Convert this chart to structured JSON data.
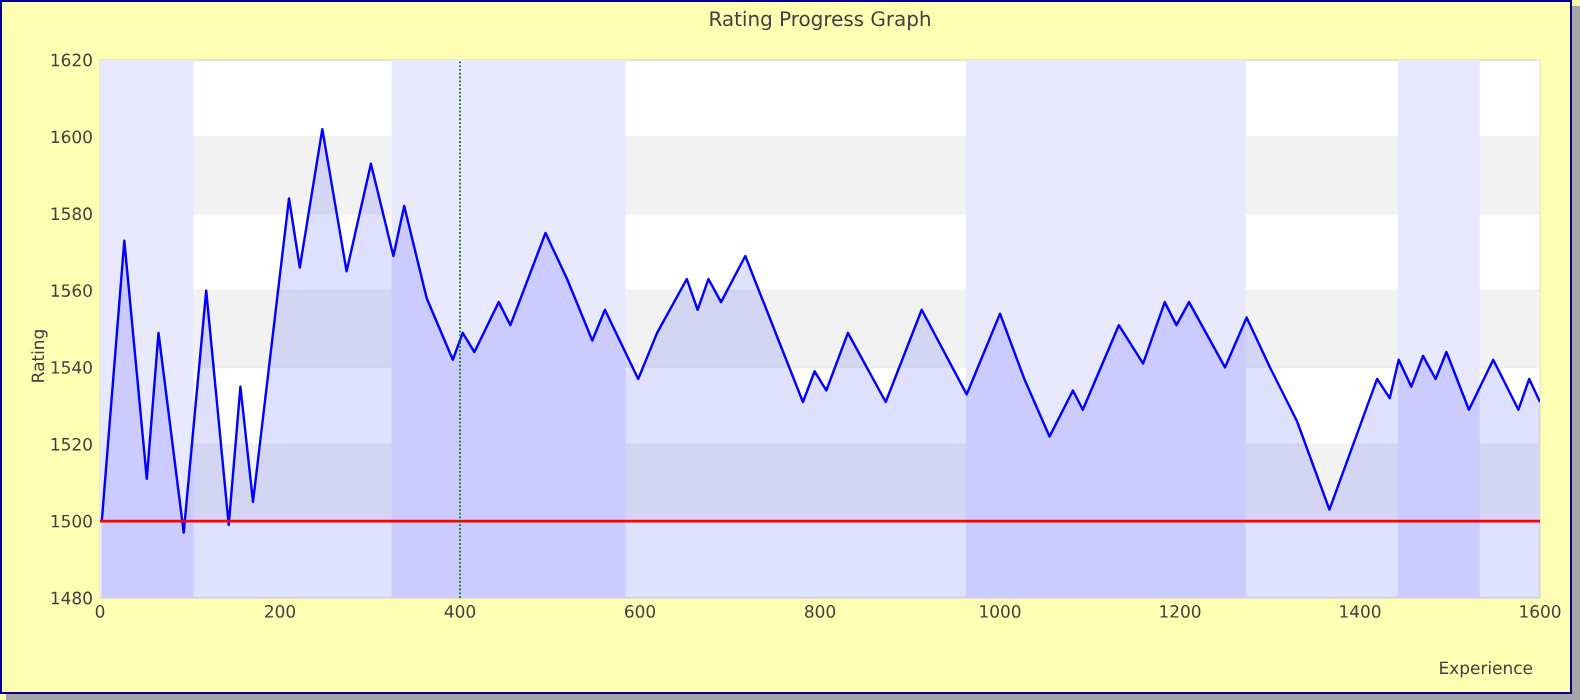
{
  "chart_data": {
    "type": "area",
    "title": "Rating Progress Graph",
    "xlabel": "Experience",
    "ylabel": "Rating",
    "x": [
      2,
      27,
      52,
      65,
      93,
      118,
      143,
      156,
      170,
      210,
      222,
      247,
      274,
      301,
      326,
      338,
      363,
      392,
      403,
      416,
      443,
      456,
      495,
      519,
      547,
      561,
      598,
      619,
      652,
      664,
      676,
      690,
      717,
      754,
      781,
      794,
      807,
      831,
      873,
      913,
      963,
      1000,
      1027,
      1055,
      1081,
      1092,
      1132,
      1159,
      1183,
      1196,
      1210,
      1250,
      1274,
      1300,
      1315,
      1330,
      1366,
      1419,
      1433,
      1443,
      1457,
      1470,
      1484,
      1496,
      1521,
      1548,
      1576,
      1588,
      1600
    ],
    "series": [
      {
        "color": "#0000ff",
        "values": [
          1500,
          1573,
          1511,
          1549,
          1497,
          1560,
          1499,
          1535,
          1505,
          1584,
          1566,
          1602,
          1565,
          1593,
          1569,
          1582,
          1558,
          1542,
          1549,
          1544,
          1557,
          1551,
          1575,
          1563,
          1547,
          1555,
          1537,
          1549,
          1563,
          1555,
          1563,
          1557,
          1569,
          1547,
          1531,
          1539,
          1534,
          1549,
          1531,
          1555,
          1533,
          1554,
          1537,
          1522,
          1534,
          1529,
          1551,
          1541,
          1557,
          1551,
          1557,
          1540,
          1553,
          1540,
          1533,
          1526,
          1503,
          1537,
          1532,
          1542,
          1535,
          1543,
          1537,
          1544,
          1529,
          1542,
          1529,
          1537,
          1531
        ]
      }
    ],
    "xlim": [
      0,
      1600
    ],
    "ylim": [
      1480,
      1620
    ],
    "xticks": [
      0,
      200,
      400,
      600,
      800,
      1000,
      1200,
      1400,
      1600
    ],
    "yticks": [
      1480,
      1500,
      1520,
      1540,
      1560,
      1580,
      1600,
      1620
    ],
    "grid": "y",
    "marker": "none",
    "line_style": "solid",
    "ref_lines": [
      {
        "axis": "y",
        "value": 1500,
        "color": "#ff0000",
        "line_style": "solid"
      },
      {
        "axis": "x",
        "value": 400,
        "color": "#008000",
        "line_style": "dotted"
      }
    ],
    "bands": [
      {
        "axis": "x",
        "from": 0,
        "to": 104,
        "color": "#e8e8ff"
      },
      {
        "axis": "x",
        "from": 324,
        "to": 584,
        "color": "#e8e8ff"
      },
      {
        "axis": "x",
        "from": 962,
        "to": 1273,
        "color": "#e8e8ff"
      },
      {
        "axis": "x",
        "from": 1442,
        "to": 1533,
        "color": "#e8e8ff"
      }
    ]
  }
}
